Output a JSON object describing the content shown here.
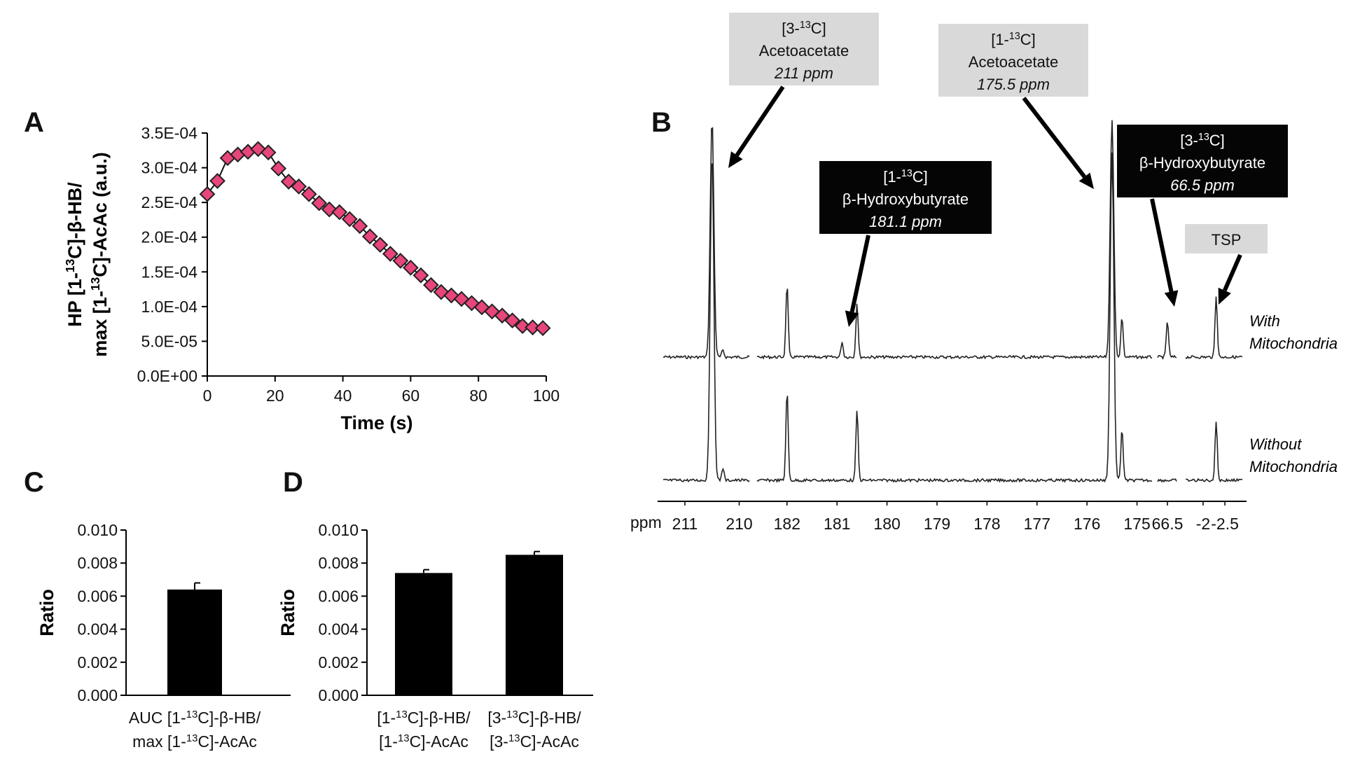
{
  "panel_labels": {
    "a": "A",
    "b": "B",
    "c": "C",
    "d": "D"
  },
  "chart_data": [
    {
      "panel": "A",
      "type": "scatter",
      "marker": "diamond",
      "marker_color": "#e8457a",
      "marker_edge": "#222222",
      "line_color": "#111111",
      "xlabel": "Time (s)",
      "ylabel": [
        "HP [1-",
        "13",
        "C]-β-HB/",
        "max [1-",
        "13",
        "C]-AcAc (a.u.)"
      ],
      "x_ticks": [
        "0",
        "20",
        "40",
        "60",
        "80",
        "100"
      ],
      "y_ticks": [
        "0.0E+00",
        "5.0E-05",
        "1.0E-04",
        "1.5E-04",
        "2.0E-04",
        "2.5E-04",
        "3.0E-04",
        "3.5E-04"
      ],
      "xlim": [
        0,
        100
      ],
      "ylim": [
        0,
        0.00035
      ],
      "x": [
        0,
        3,
        6,
        9,
        12,
        15,
        18,
        21,
        24,
        27,
        30,
        33,
        36,
        39,
        42,
        45,
        48,
        51,
        54,
        57,
        60,
        63,
        66,
        69,
        72,
        75,
        78,
        81,
        84,
        87,
        90,
        93,
        96,
        99
      ],
      "y": [
        0.000262,
        0.000281,
        0.000314,
        0.000319,
        0.000323,
        0.000327,
        0.000322,
        0.000299,
        0.00028,
        0.000273,
        0.000262,
        0.000249,
        0.00024,
        0.000236,
        0.000226,
        0.000216,
        0.000201,
        0.000189,
        0.000176,
        0.000166,
        0.000156,
        0.000145,
        0.000131,
        0.000121,
        0.000116,
        0.000111,
        0.000105,
        9.9e-05,
        9.3e-05,
        8.7e-05,
        8e-05,
        7.2e-05,
        7e-05,
        6.9e-05
      ]
    },
    {
      "panel": "B",
      "type": "line",
      "x_axis_prefix": "ppm",
      "series": [
        {
          "name": "With Mitochondria",
          "label_lines": [
            "With",
            "Mitochondria"
          ]
        },
        {
          "name": "Without Mitochondria",
          "label_lines": [
            "Without",
            "Mitochondria"
          ]
        }
      ],
      "axis_segments": [
        {
          "ticks": [
            "211",
            "210"
          ],
          "ppm_range": [
            211.4,
            209.8
          ]
        },
        {
          "ticks": [
            "182",
            "181",
            "180",
            "179",
            "178",
            "177",
            "176",
            "175"
          ],
          "ppm_range": [
            182.6,
            174.7
          ]
        },
        {
          "ticks": [
            "66.5"
          ],
          "ppm_range": [
            66.8,
            66.2
          ]
        },
        {
          "ticks": [
            "-2",
            "-2.5"
          ],
          "ppm_range": [
            -1.6,
            -2.9
          ]
        }
      ],
      "peaks": [
        {
          "ppm": 210.5,
          "with": 340,
          "without": 470,
          "clipped": true
        },
        {
          "ppm": 210.3,
          "with": 10,
          "without": 18
        },
        {
          "ppm": 182.0,
          "with": 105,
          "without": 130
        },
        {
          "ppm": 180.9,
          "with": 22,
          "without": 0
        },
        {
          "ppm": 180.6,
          "with": 78,
          "without": 102
        },
        {
          "ppm": 175.5,
          "with": 340,
          "without": 470,
          "clipped": true
        },
        {
          "ppm": 175.3,
          "with": 58,
          "without": 75
        },
        {
          "ppm": 66.5,
          "with": 52,
          "without": 0
        },
        {
          "ppm": -2.3,
          "with": 88,
          "without": 85
        }
      ],
      "annotations": [
        {
          "lines": [
            {
              "t": "[3-"
            },
            {
              "sup": "13"
            },
            {
              "t": "C]"
            }
          ],
          "name": "Acetoacetate",
          "shift": "211 ppm",
          "style": "light",
          "target_ppm": 210.5
        },
        {
          "lines": [
            {
              "t": "[1-"
            },
            {
              "sup": "13"
            },
            {
              "t": "C]"
            }
          ],
          "name": "Acetoacetate",
          "shift": "175.5 ppm",
          "style": "light",
          "target_ppm": 175.5
        },
        {
          "lines": [
            {
              "t": "[1-"
            },
            {
              "sup": "13"
            },
            {
              "t": "C]"
            }
          ],
          "name": "β-Hydroxybutyrate",
          "shift": "181.1 ppm",
          "style": "dark",
          "target_ppm": 180.9
        },
        {
          "lines": [
            {
              "t": "[3-"
            },
            {
              "sup": "13"
            },
            {
              "t": "C]"
            }
          ],
          "name": "β-Hydroxybutyrate",
          "shift": "66.5 ppm",
          "style": "dark",
          "target_ppm": 66.5
        },
        {
          "lines": [],
          "name": "TSP",
          "shift": "",
          "style": "light",
          "target_ppm": -2.3
        }
      ]
    },
    {
      "panel": "C",
      "type": "bar",
      "ylabel": "Ratio",
      "y_ticks": [
        "0.000",
        "0.002",
        "0.004",
        "0.006",
        "0.008",
        "0.010"
      ],
      "ylim": [
        0,
        0.01
      ],
      "categories": [
        {
          "parts": [
            [
              "AUC [1-",
              "13",
              "C]-β-HB/"
            ],
            [
              "max [1-",
              "13",
              "C]-AcAc"
            ]
          ]
        }
      ],
      "values": [
        0.0064
      ],
      "errors": [
        0.0004
      ],
      "bar_color": "#000000"
    },
    {
      "panel": "D",
      "type": "bar",
      "ylabel": "Ratio",
      "y_ticks": [
        "0.000",
        "0.002",
        "0.004",
        "0.006",
        "0.008",
        "0.010"
      ],
      "ylim": [
        0,
        0.01
      ],
      "categories": [
        {
          "parts": [
            [
              "[1-",
              "13",
              "C]-β-HB/"
            ],
            [
              "[1-",
              "13",
              "C]-AcAc"
            ]
          ]
        },
        {
          "parts": [
            [
              "[3-",
              "13",
              "C]-β-HB/"
            ],
            [
              "[3-",
              "13",
              "C]-AcAc"
            ]
          ]
        }
      ],
      "values": [
        0.0074,
        0.0085
      ],
      "errors": [
        0.0002,
        0.0002
      ],
      "bar_color": "#000000"
    }
  ]
}
